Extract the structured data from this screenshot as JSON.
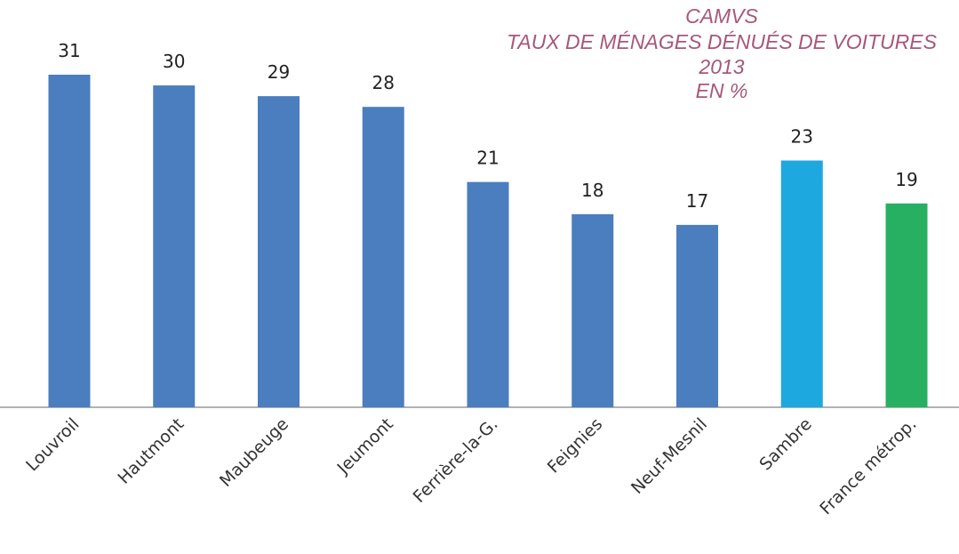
{
  "chart_data": {
    "type": "bar",
    "title": [
      "CAMVS",
      "TAUX DE MÉNAGES DÉNUÉS DE VOITURES",
      "2013",
      "EN %"
    ],
    "categories": [
      "Louvroil",
      "Hautmont",
      "Maubeuge",
      "Jeumont",
      "Ferrière-la-G.",
      "Feignies",
      "Neuf-Mesnil",
      "Sambre",
      "France métrop."
    ],
    "values": [
      31,
      30,
      29,
      28,
      21,
      18,
      17,
      23,
      19
    ],
    "colors": [
      "#4a7ebf",
      "#4a7ebf",
      "#4a7ebf",
      "#4a7ebf",
      "#4a7ebf",
      "#4a7ebf",
      "#4a7ebf",
      "#1ea8e0",
      "#27b062"
    ]
  }
}
